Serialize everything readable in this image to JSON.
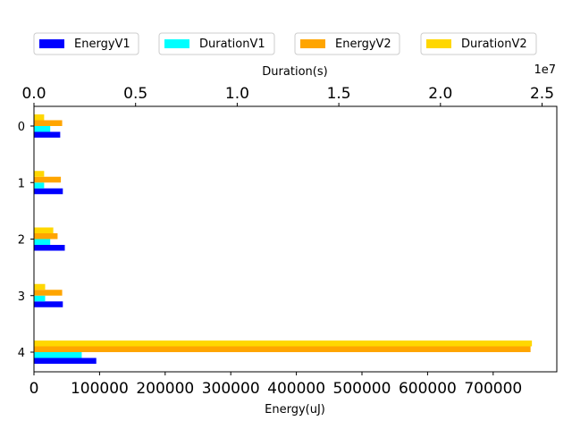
{
  "chart_data": {
    "type": "bar",
    "orientation": "horizontal",
    "categories": [
      "0",
      "1",
      "2",
      "3",
      "4"
    ],
    "series": [
      {
        "name": "EnergyV1",
        "axis": "energy",
        "color": "#0000ff",
        "values": [
          40000,
          44000,
          47000,
          44000,
          95000
        ]
      },
      {
        "name": "DurationV1",
        "axis": "duration",
        "color": "#00ffff",
        "values": [
          800000,
          500000,
          800000,
          550000,
          2350000
        ]
      },
      {
        "name": "EnergyV2",
        "axis": "energy",
        "color": "#ffa500",
        "values": [
          43000,
          41000,
          36000,
          43000,
          757000
        ]
      },
      {
        "name": "DurationV2",
        "axis": "duration",
        "color": "#ffd700",
        "values": [
          500000,
          500000,
          950000,
          550000,
          24500000
        ]
      }
    ],
    "energy_axis": {
      "label": "Energy(uJ)",
      "range": [
        0,
        797000
      ],
      "ticks": [
        0,
        100000,
        200000,
        300000,
        400000,
        500000,
        600000,
        700000
      ],
      "tick_labels": [
        "0",
        "100000",
        "200000",
        "300000",
        "400000",
        "500000",
        "600000",
        "700000"
      ]
    },
    "duration_axis": {
      "label": "Duration(s)",
      "range": [
        0,
        25725000
      ],
      "ticks": [
        0,
        5000000,
        10000000,
        15000000,
        20000000,
        25000000
      ],
      "tick_labels": [
        "0.0",
        "0.5",
        "1.0",
        "1.5",
        "2.0",
        "2.5"
      ],
      "offset_text": "1e7"
    },
    "legend": {
      "placement": "top",
      "columns": 4
    },
    "grid": false
  }
}
